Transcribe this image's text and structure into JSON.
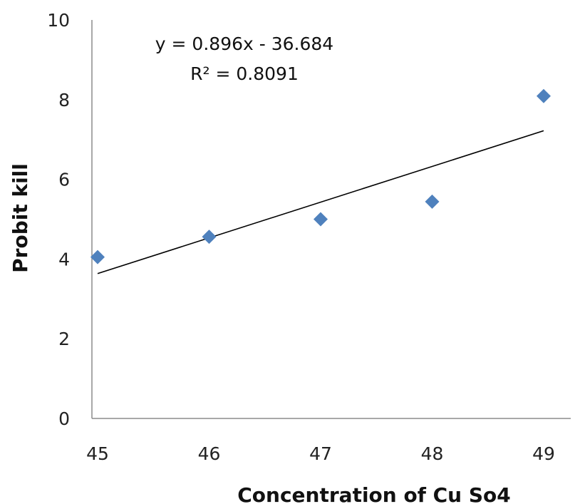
{
  "chart_data": {
    "type": "scatter",
    "xlabel": "Concentration of Cu So4",
    "ylabel": "Probit kill",
    "xlim": [
      45,
      49
    ],
    "ylim": [
      0,
      10
    ],
    "x_ticks": [
      "45",
      "46",
      "47",
      "48",
      "49"
    ],
    "y_ticks": [
      "0",
      "2",
      "4",
      "6",
      "8",
      "10"
    ],
    "grid": false,
    "marker_color": "#4F81BD",
    "line_color": "#000000",
    "series": [
      {
        "x": [
          45,
          46,
          47,
          48,
          49
        ],
        "y": [
          4.05,
          4.56,
          5.0,
          5.44,
          8.09
        ]
      }
    ],
    "trendline": {
      "type": "linear",
      "slope": 0.896,
      "intercept": -36.684,
      "equation_label": "y = 0.896x - 36.684",
      "r2_label": "R² = 0.8091"
    }
  }
}
